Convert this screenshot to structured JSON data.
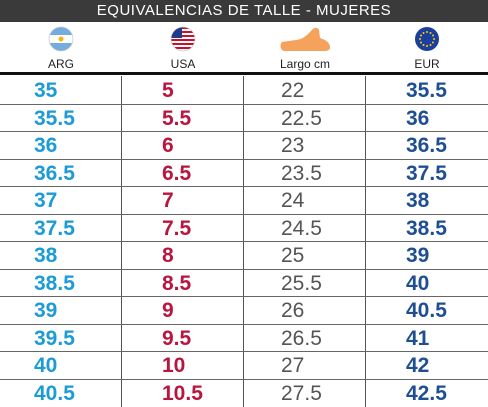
{
  "title": "EQUIVALENCIAS DE TALLE - MUJERES",
  "columns": [
    {
      "label": "ARG",
      "icon": "argentina-flag-icon"
    },
    {
      "label": "USA",
      "icon": "usa-flag-icon"
    },
    {
      "label": "Largo cm",
      "icon": "foot-icon"
    },
    {
      "label": "EUR",
      "icon": "eu-flag-icon"
    }
  ],
  "colors": {
    "arg": "#1c9bd6",
    "usa": "#b8163f",
    "cm": "#555555",
    "eur": "#1f4f93"
  },
  "rows": [
    {
      "arg": "35",
      "usa": "5",
      "cm": "22",
      "eur": "35.5"
    },
    {
      "arg": "35.5",
      "usa": "5.5",
      "cm": "22.5",
      "eur": "36"
    },
    {
      "arg": "36",
      "usa": "6",
      "cm": "23",
      "eur": "36.5"
    },
    {
      "arg": "36.5",
      "usa": "6.5",
      "cm": "23.5",
      "eur": "37.5"
    },
    {
      "arg": "37",
      "usa": "7",
      "cm": "24",
      "eur": "38"
    },
    {
      "arg": "37.5",
      "usa": "7.5",
      "cm": "24.5",
      "eur": "38.5"
    },
    {
      "arg": "38",
      "usa": "8",
      "cm": "25",
      "eur": "39"
    },
    {
      "arg": "38.5",
      "usa": "8.5",
      "cm": "25.5",
      "eur": "40"
    },
    {
      "arg": "39",
      "usa": "9",
      "cm": "26",
      "eur": "40.5"
    },
    {
      "arg": "39.5",
      "usa": "9.5",
      "cm": "26.5",
      "eur": "41"
    },
    {
      "arg": "40",
      "usa": "10",
      "cm": "27",
      "eur": "42"
    },
    {
      "arg": "40.5",
      "usa": "10.5",
      "cm": "27.5",
      "eur": "42.5"
    }
  ]
}
